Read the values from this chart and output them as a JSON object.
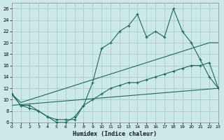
{
  "title": "",
  "xlabel": "Humidex (Indice chaleur)",
  "bg_color": "#cce8e8",
  "grid_color": "#aacccc",
  "line_color": "#1a6b5a",
  "xlim": [
    0,
    23
  ],
  "ylim": [
    6,
    27
  ],
  "xticks": [
    0,
    1,
    2,
    3,
    4,
    5,
    6,
    7,
    8,
    9,
    10,
    11,
    12,
    13,
    14,
    15,
    16,
    17,
    18,
    19,
    20,
    21,
    22,
    23
  ],
  "yticks": [
    6,
    8,
    10,
    12,
    14,
    16,
    18,
    20,
    22,
    24,
    26
  ],
  "line1_x": [
    0,
    1,
    2,
    3,
    4,
    5,
    6,
    7,
    8,
    9,
    10,
    11,
    12,
    13,
    14,
    15,
    16,
    17,
    18,
    19,
    20,
    21,
    22,
    23
  ],
  "line1_y": [
    11,
    9,
    9,
    8,
    7,
    6,
    6,
    7,
    9,
    13,
    19,
    20,
    22,
    23,
    25,
    21,
    22,
    21,
    26,
    22,
    20,
    17,
    14,
    12
  ],
  "line2_x": [
    0,
    1,
    2,
    3,
    4,
    5,
    6,
    7,
    8,
    9,
    10,
    11,
    12,
    13,
    14,
    15,
    16,
    17,
    18,
    19,
    20,
    21,
    22,
    23
  ],
  "line2_y": [
    11,
    9.5,
    10,
    10.5,
    11,
    11.5,
    12,
    12.5,
    13,
    13.5,
    14,
    14.5,
    15,
    15.5,
    16,
    16.5,
    17,
    17.5,
    18,
    18.5,
    19,
    19.5,
    20,
    20
  ],
  "line3_x": [
    0,
    23
  ],
  "line3_y": [
    9,
    12
  ],
  "line4_x": [
    0,
    1,
    2,
    3,
    4,
    5,
    6,
    7,
    8,
    9,
    10,
    11,
    12,
    13,
    14,
    15,
    16,
    17,
    18,
    19,
    20,
    21,
    22,
    23
  ],
  "line4_y": [
    11,
    9,
    8.5,
    8,
    7,
    6.5,
    6.5,
    6.5,
    9,
    10,
    11,
    12,
    12.5,
    13,
    13,
    13.5,
    14,
    14.5,
    15,
    15.5,
    16,
    16,
    16.5,
    12
  ]
}
